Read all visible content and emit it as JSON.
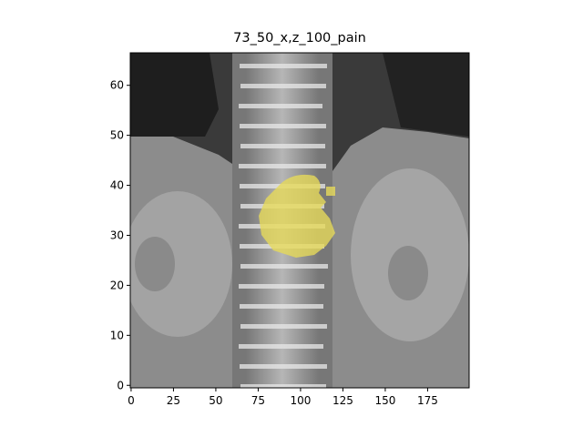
{
  "figure": {
    "title": "73_50_x,z_100_pain"
  },
  "image": {
    "description_free": true,
    "x_range": [
      0,
      199
    ],
    "y_range": [
      0,
      66
    ],
    "overlay": {
      "color": "#e6da5a",
      "center": [
        100,
        34
      ],
      "radius": 8.5
    }
  },
  "axes": {
    "x_ticks": [
      0,
      25,
      50,
      75,
      100,
      125,
      150,
      175
    ],
    "y_ticks": [
      0,
      10,
      20,
      30,
      40,
      50,
      60
    ]
  },
  "colors": {
    "background": "#ffffff",
    "overlay": "#e6da5a",
    "bone": "#d9d9d9",
    "tissue": "#8a8a8a",
    "dark": "#2a2a2a"
  }
}
